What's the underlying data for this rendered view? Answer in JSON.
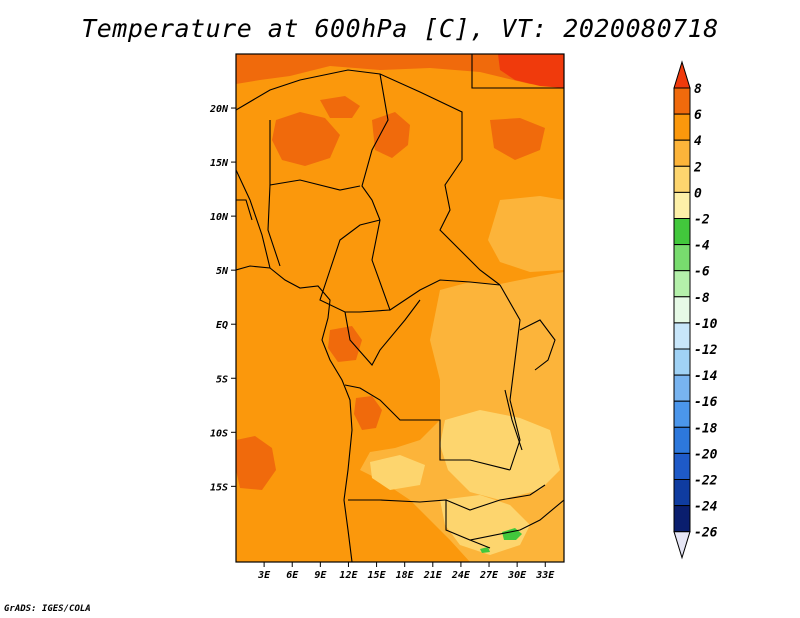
{
  "title": "Temperature at 600hPa [C], VT: 2020080718",
  "credit": "GrADS: IGES/COLA",
  "map": {
    "projection": "lat-lon",
    "lon_range": [
      0,
      35
    ],
    "lat_range": [
      -22,
      25
    ],
    "x_ticks": [
      "3E",
      "6E",
      "9E",
      "12E",
      "15E",
      "18E",
      "21E",
      "24E",
      "27E",
      "30E",
      "33E"
    ],
    "y_ticks": [
      "20N",
      "15N",
      "10N",
      "5N",
      "EQ",
      "5S",
      "10S",
      "15S"
    ],
    "borders": "country-outlines",
    "field": {
      "variable": "temperature",
      "level": "600hPa",
      "units": "C",
      "dominant_range": [
        2,
        4
      ],
      "warm_areas": [
        "northern Sahara (6 to 8)",
        "Niger/Chad (4 to 6)",
        "southwest Angola coast (4 to 6)"
      ],
      "cool_areas": [
        "East Africa / Zambia / Zimbabwe (0 to 2)",
        "small patch near Zambia/Mozambique (-6 to -4)"
      ]
    }
  },
  "colorbar": {
    "labels": [
      "8",
      "6",
      "4",
      "2",
      "0",
      "-2",
      "-4",
      "-6",
      "-8",
      "-10",
      "-12",
      "-14",
      "-16",
      "-18",
      "-20",
      "-22",
      "-24",
      "-26"
    ],
    "colors": [
      "#f03a0c",
      "#f06a0c",
      "#fb980c",
      "#fcb43a",
      "#fdd56e",
      "#fdf0a8",
      "#42c83c",
      "#78dc6e",
      "#b4f0aa",
      "#e6fae6",
      "#c8e6fa",
      "#a0d2f5",
      "#78b4f0",
      "#4b96eb",
      "#2d78dc",
      "#1e5ac8",
      "#0f3ca0",
      "#0a1e6e",
      "#e6e6f5"
    ]
  }
}
